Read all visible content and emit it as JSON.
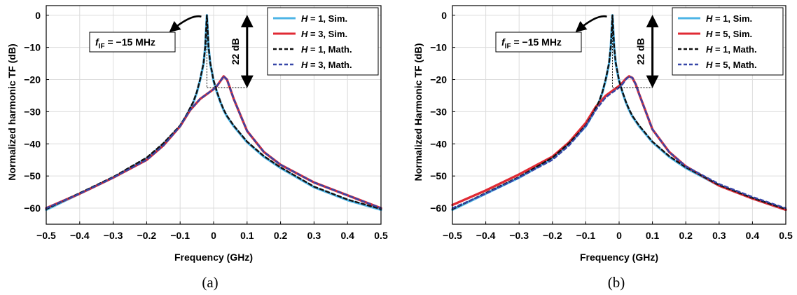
{
  "chart_data": [
    {
      "type": "line",
      "caption": "(a)",
      "xlabel": "Frequency (GHz)",
      "ylabel": "Normalized harmonic TF (dB)",
      "xlim": [
        -0.5,
        0.5
      ],
      "ylim": [
        -65,
        3
      ],
      "xticks": [
        "−0.5",
        "−0.4",
        "−0.3",
        "−0.2",
        "−0.1",
        "0",
        "0.1",
        "0.2",
        "0.3",
        "0.4",
        "0.5"
      ],
      "yticks": [
        "0",
        "−10",
        "−20",
        "−30",
        "−40",
        "−50",
        "−60"
      ],
      "xtick_values": [
        -0.5,
        -0.4,
        -0.3,
        -0.2,
        -0.1,
        0,
        0.1,
        0.2,
        0.3,
        0.4,
        0.5
      ],
      "ytick_values": [
        0,
        -10,
        -20,
        -30,
        -40,
        -50,
        -60
      ],
      "grid": true,
      "legend_position": "top-right",
      "annotation_if": {
        "prefix": "f",
        "subscript": "IF",
        "text": " = −15 MHz"
      },
      "annotation_db": "22 dB",
      "series": [
        {
          "name": "H = 1, Sim.",
          "var": "H",
          "rest": " = 1, Sim.",
          "color": "#4db4e6",
          "style": "solid",
          "x": [
            -0.5,
            -0.4,
            -0.3,
            -0.2,
            -0.15,
            -0.1,
            -0.08,
            -0.06,
            -0.05,
            -0.04,
            -0.03,
            -0.025,
            -0.02,
            -0.015,
            -0.01,
            0,
            0.01,
            0.02,
            0.03,
            0.04,
            0.06,
            0.08,
            0.1,
            0.15,
            0.2,
            0.3,
            0.4,
            0.5
          ],
          "y": [
            -60.5,
            -55.5,
            -50.5,
            -44.5,
            -40,
            -34.5,
            -31,
            -27,
            -24,
            -20,
            -15,
            -10,
            0,
            -10,
            -15,
            -20.5,
            -24,
            -27,
            -29.5,
            -31.5,
            -34.5,
            -37,
            -39.5,
            -44,
            -47.5,
            -53.5,
            -57.5,
            -60.5
          ]
        },
        {
          "name": "H = 3, Sim.",
          "var": "H",
          "rest": " = 3, Sim.",
          "color": "#e02a34",
          "style": "solid",
          "x": [
            -0.5,
            -0.4,
            -0.3,
            -0.2,
            -0.15,
            -0.1,
            -0.07,
            -0.04,
            -0.02,
            0,
            0.01,
            0.02,
            0.03,
            0.04,
            0.05,
            0.06,
            0.08,
            0.1,
            0.15,
            0.2,
            0.3,
            0.4,
            0.5
          ],
          "y": [
            -60,
            -55.5,
            -50.5,
            -45,
            -40.5,
            -34.5,
            -29.5,
            -26,
            -24.5,
            -23,
            -22,
            -20.5,
            -19,
            -20,
            -23,
            -26,
            -31,
            -36,
            -42.5,
            -46.5,
            -52,
            -56,
            -60
          ]
        },
        {
          "name": "H = 1, Math.",
          "var": "H",
          "rest": " = 1, Math.",
          "color": "#111111",
          "style": "dashed",
          "x": [
            -0.5,
            -0.4,
            -0.3,
            -0.2,
            -0.15,
            -0.1,
            -0.08,
            -0.06,
            -0.05,
            -0.04,
            -0.03,
            -0.025,
            -0.02,
            -0.015,
            -0.01,
            0,
            0.01,
            0.02,
            0.03,
            0.04,
            0.06,
            0.08,
            0.1,
            0.15,
            0.2,
            0.3,
            0.4,
            0.5
          ],
          "y": [
            -60.3,
            -55.3,
            -50.3,
            -44.3,
            -39.8,
            -34.3,
            -30.8,
            -26.8,
            -23.8,
            -19.8,
            -14.8,
            -9.8,
            0,
            -9.8,
            -14.8,
            -20.3,
            -23.8,
            -26.8,
            -29.3,
            -31.3,
            -34.3,
            -36.8,
            -39.3,
            -43.8,
            -47.3,
            -53.3,
            -57.3,
            -60.3
          ]
        },
        {
          "name": "H = 3, Math.",
          "var": "H",
          "rest": " = 3, Math.",
          "color": "#3646a8",
          "style": "dashed",
          "x": [
            -0.5,
            -0.4,
            -0.3,
            -0.2,
            -0.15,
            -0.1,
            -0.07,
            -0.04,
            -0.02,
            0,
            0.01,
            0.02,
            0.03,
            0.04,
            0.05,
            0.06,
            0.08,
            0.1,
            0.15,
            0.2,
            0.3,
            0.4,
            0.5
          ],
          "y": [
            -60,
            -55.5,
            -50.5,
            -45,
            -40.5,
            -34.5,
            -29.5,
            -26,
            -24.5,
            -23,
            -22,
            -20.5,
            -19,
            -20,
            -23,
            -26,
            -31,
            -36,
            -42.5,
            -46.5,
            -52,
            -56,
            -60
          ]
        }
      ]
    },
    {
      "type": "line",
      "caption": "(b)",
      "xlabel": "Frequency (GHz)",
      "ylabel": "Normalized Harmonic TF (dB)",
      "xlim": [
        -0.5,
        0.5
      ],
      "ylim": [
        -65,
        3
      ],
      "xticks": [
        "−0.5",
        "−0.4",
        "−0.3",
        "−0.2",
        "−0.1",
        "0",
        "0.1",
        "0.2",
        "0.3",
        "0.4",
        "0.5"
      ],
      "yticks": [
        "0",
        "−10",
        "−20",
        "−30",
        "−40",
        "−50",
        "−60"
      ],
      "xtick_values": [
        -0.5,
        -0.4,
        -0.3,
        -0.2,
        -0.1,
        0,
        0.1,
        0.2,
        0.3,
        0.4,
        0.5
      ],
      "ytick_values": [
        0,
        -10,
        -20,
        -30,
        -40,
        -50,
        -60
      ],
      "grid": true,
      "legend_position": "top-right",
      "annotation_if": {
        "prefix": "f",
        "subscript": "IF",
        "text": " = −15 MHz"
      },
      "annotation_db": "22 dB",
      "series": [
        {
          "name": "H = 1, Sim.",
          "var": "H",
          "rest": " = 1, Sim.",
          "color": "#4db4e6",
          "style": "solid",
          "x": [
            -0.5,
            -0.4,
            -0.3,
            -0.2,
            -0.15,
            -0.1,
            -0.08,
            -0.06,
            -0.05,
            -0.04,
            -0.03,
            -0.025,
            -0.02,
            -0.015,
            -0.01,
            0,
            0.01,
            0.02,
            0.03,
            0.04,
            0.06,
            0.08,
            0.1,
            0.15,
            0.2,
            0.3,
            0.4,
            0.5
          ],
          "y": [
            -60.5,
            -55.5,
            -50.5,
            -44.5,
            -40,
            -34.5,
            -31,
            -27,
            -24,
            -20,
            -15,
            -10,
            0,
            -10,
            -15,
            -20.5,
            -24,
            -27,
            -29.5,
            -31.5,
            -34.5,
            -37,
            -39.5,
            -44,
            -47.5,
            -53,
            -57,
            -60.5
          ]
        },
        {
          "name": "H = 5, Sim.",
          "var": "H",
          "rest": " = 5, Sim.",
          "color": "#e02a34",
          "style": "solid",
          "x": [
            -0.5,
            -0.4,
            -0.3,
            -0.2,
            -0.15,
            -0.1,
            -0.07,
            -0.04,
            -0.02,
            0,
            0.01,
            0.02,
            0.03,
            0.04,
            0.05,
            0.06,
            0.08,
            0.1,
            0.15,
            0.2,
            0.3,
            0.4,
            0.5
          ],
          "y": [
            -59,
            -54.5,
            -49.5,
            -44,
            -39.5,
            -33.5,
            -28.5,
            -25,
            -23.5,
            -22,
            -21,
            -19.8,
            -19,
            -19.5,
            -21.5,
            -24.5,
            -30,
            -35.5,
            -42.5,
            -47,
            -53,
            -57,
            -60.5
          ]
        },
        {
          "name": "H = 1, Math.",
          "var": "H",
          "rest": " = 1, Math.",
          "color": "#111111",
          "style": "dashed",
          "x": [
            -0.5,
            -0.4,
            -0.3,
            -0.2,
            -0.15,
            -0.1,
            -0.08,
            -0.06,
            -0.05,
            -0.04,
            -0.03,
            -0.025,
            -0.02,
            -0.015,
            -0.01,
            0,
            0.01,
            0.02,
            0.03,
            0.04,
            0.06,
            0.08,
            0.1,
            0.15,
            0.2,
            0.3,
            0.4,
            0.5
          ],
          "y": [
            -60.3,
            -55.3,
            -50.3,
            -44.3,
            -39.8,
            -34.3,
            -30.8,
            -26.8,
            -23.8,
            -19.8,
            -14.8,
            -9.8,
            0,
            -9.8,
            -14.8,
            -20.3,
            -23.8,
            -26.8,
            -29.3,
            -31.3,
            -34.3,
            -36.8,
            -39.3,
            -43.8,
            -47.3,
            -52.8,
            -56.8,
            -60.3
          ]
        },
        {
          "name": "H = 5, Math.",
          "var": "H",
          "rest": " = 5, Math.",
          "color": "#3646a8",
          "style": "dashed",
          "x": [
            -0.5,
            -0.4,
            -0.3,
            -0.2,
            -0.15,
            -0.1,
            -0.07,
            -0.04,
            -0.02,
            0,
            0.01,
            0.02,
            0.03,
            0.04,
            0.05,
            0.06,
            0.08,
            0.1,
            0.15,
            0.2,
            0.3,
            0.4,
            0.5
          ],
          "y": [
            -60,
            -55.5,
            -50.5,
            -45,
            -40.5,
            -34.5,
            -29.5,
            -25.5,
            -24,
            -22.5,
            -21.5,
            -20,
            -19,
            -19.5,
            -21.5,
            -24.5,
            -30,
            -35.5,
            -42.5,
            -47,
            -52.5,
            -56.5,
            -60
          ]
        }
      ]
    }
  ]
}
